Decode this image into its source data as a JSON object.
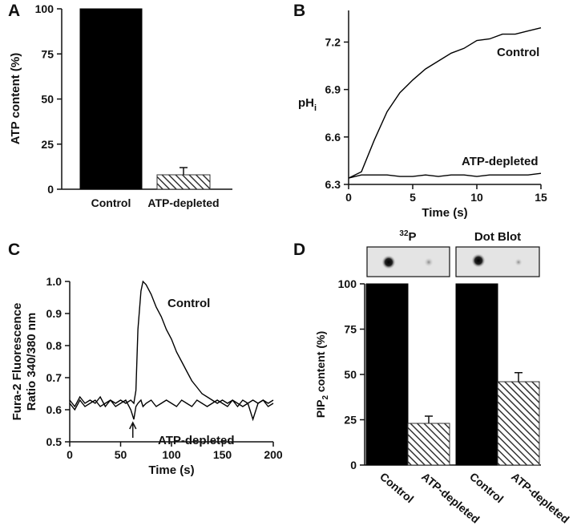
{
  "chart_data": [
    {
      "panel": "A",
      "type": "bar",
      "y_label": "ATP content (%)",
      "categories": [
        "Control",
        "ATP-depleted"
      ],
      "values": [
        100,
        8
      ],
      "errors": [
        null,
        4
      ],
      "colors": [
        "#000000",
        "#333333"
      ],
      "fills": [
        "solid",
        "hatched"
      ],
      "ylim": [
        0,
        100
      ],
      "yticks": [
        0,
        25,
        50,
        75,
        100
      ]
    },
    {
      "panel": "B",
      "type": "line",
      "y_label": {
        "main": "pH",
        "sub": "i"
      },
      "x_label": "Time (s)",
      "x": [
        0,
        1,
        2,
        3,
        4,
        5,
        6,
        7,
        8,
        9,
        10,
        11,
        12,
        13,
        14,
        15
      ],
      "series": [
        {
          "name": "Control",
          "color": "#000000",
          "values": [
            6.34,
            6.38,
            6.58,
            6.76,
            6.88,
            6.96,
            7.03,
            7.08,
            7.13,
            7.16,
            7.21,
            7.22,
            7.25,
            7.25,
            7.27,
            7.29
          ]
        },
        {
          "name": "ATP-depleted",
          "color": "#000000",
          "values": [
            6.34,
            6.36,
            6.36,
            6.36,
            6.35,
            6.35,
            6.36,
            6.35,
            6.36,
            6.36,
            6.35,
            6.36,
            6.36,
            6.36,
            6.36,
            6.37
          ]
        }
      ],
      "xlim": [
        0,
        15
      ],
      "xticks": [
        0,
        5,
        10,
        15
      ],
      "ylim": [
        6.3,
        7.4
      ],
      "yticks": [
        6.3,
        6.6,
        6.9,
        7.2
      ]
    },
    {
      "panel": "C",
      "type": "line",
      "y_label": [
        "Fura-2 Fluorescence",
        "Ratio 340/380 nm"
      ],
      "x_label": "Time (s)",
      "arrow_x": 62,
      "x": [
        0,
        5,
        10,
        15,
        20,
        25,
        30,
        35,
        40,
        45,
        50,
        55,
        60,
        63,
        65,
        67,
        70,
        72,
        75,
        80,
        85,
        90,
        95,
        100,
        105,
        110,
        115,
        120,
        125,
        130,
        135,
        140,
        145,
        150,
        155,
        160,
        165,
        170,
        175,
        180,
        185,
        190,
        195,
        200
      ],
      "series": [
        {
          "name": "Control",
          "color": "#000000",
          "values": [
            0.63,
            0.61,
            0.64,
            0.62,
            0.63,
            0.62,
            0.64,
            0.61,
            0.63,
            0.62,
            0.63,
            0.62,
            0.63,
            0.62,
            0.66,
            0.85,
            0.97,
            1.0,
            0.99,
            0.96,
            0.92,
            0.89,
            0.85,
            0.82,
            0.78,
            0.75,
            0.72,
            0.69,
            0.67,
            0.65,
            0.64,
            0.63,
            0.62,
            0.63,
            0.62,
            0.63,
            0.61,
            0.63,
            0.62,
            0.63,
            0.62,
            0.63,
            0.62,
            0.63
          ]
        },
        {
          "name": "ATP-depleted",
          "color": "#000000",
          "values": [
            0.62,
            0.6,
            0.63,
            0.61,
            0.62,
            0.63,
            0.61,
            0.62,
            0.63,
            0.61,
            0.62,
            0.63,
            0.6,
            0.57,
            0.61,
            0.62,
            0.63,
            0.61,
            0.62,
            0.63,
            0.61,
            0.62,
            0.63,
            0.62,
            0.61,
            0.63,
            0.62,
            0.61,
            0.63,
            0.62,
            0.61,
            0.62,
            0.63,
            0.62,
            0.61,
            0.63,
            0.62,
            0.61,
            0.62,
            0.57,
            0.62,
            0.63,
            0.61,
            0.62
          ]
        }
      ],
      "xlim": [
        0,
        200
      ],
      "xticks": [
        0,
        50,
        100,
        150,
        200
      ],
      "ylim": [
        0.5,
        1.0
      ],
      "yticks": [
        0.5,
        0.6,
        0.7,
        0.8,
        0.9,
        {
          "value": 1.0,
          "label": "1.0"
        }
      ]
    },
    {
      "panel": "D",
      "type": "grouped-bar",
      "y_label": {
        "main": "PIP",
        "sub": "2",
        "rest": " content (%)"
      },
      "groups": [
        {
          "title": {
            "sup": "32",
            "text": "P"
          },
          "categories": [
            "Control",
            "ATP-depleted"
          ],
          "values": [
            100,
            23
          ],
          "errors": [
            null,
            4
          ]
        },
        {
          "title": {
            "text": "Dot Blot"
          },
          "categories": [
            "Control",
            "ATP-depleted"
          ],
          "values": [
            100,
            46
          ],
          "errors": [
            null,
            5
          ]
        }
      ],
      "colors": [
        "#000000",
        "#333333"
      ],
      "fills": [
        "solid",
        "hatched"
      ],
      "ylim": [
        0,
        100
      ],
      "yticks": [
        0,
        25,
        50,
        75,
        100
      ]
    }
  ]
}
